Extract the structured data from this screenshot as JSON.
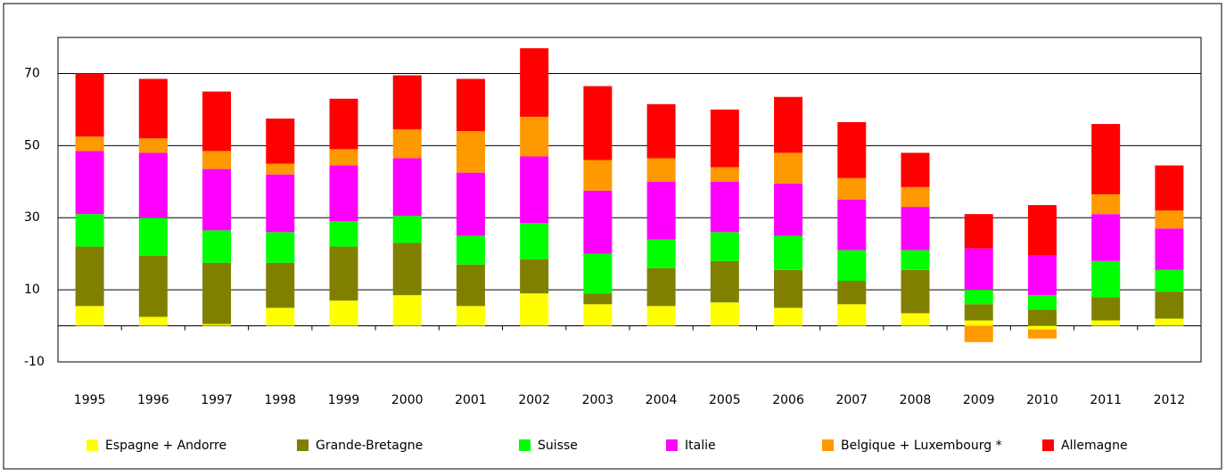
{
  "chart_data": {
    "type": "stacked_bar",
    "categories": [
      "1995",
      "1996",
      "1997",
      "1998",
      "1999",
      "2000",
      "2001",
      "2002",
      "2003",
      "2004",
      "2005",
      "2006",
      "2007",
      "2008",
      "2009",
      "2010",
      "2011",
      "2012"
    ],
    "series": [
      {
        "name": "Espagne + Andorre",
        "color": "#ffff00",
        "values": [
          5.5,
          2.5,
          0.5,
          5,
          7,
          8.5,
          5.5,
          9,
          6,
          5.5,
          6.5,
          5,
          6,
          3.5,
          1.5,
          -1,
          1.5,
          2
        ]
      },
      {
        "name": "Grande-Bretagne",
        "color": "#808000",
        "values": [
          16.5,
          17,
          17,
          12.5,
          15,
          14.5,
          11.5,
          9.5,
          3,
          10.5,
          11.5,
          10.5,
          6.5,
          12,
          4.5,
          4.5,
          6.5,
          7.5
        ]
      },
      {
        "name": "Suisse",
        "color": "#00ff00",
        "values": [
          9,
          10.5,
          9,
          8.5,
          7,
          7.5,
          8,
          10,
          11,
          8,
          8,
          9.5,
          8.5,
          5.5,
          4,
          4,
          10,
          6
        ]
      },
      {
        "name": "Italie",
        "color": "#ff00ff",
        "values": [
          17.5,
          18,
          17,
          16,
          15.5,
          16,
          17.5,
          18.5,
          17.5,
          16,
          14,
          14.5,
          14,
          12,
          11.5,
          11,
          13,
          11.5
        ]
      },
      {
        "name": "Belgique + Luxembourg *",
        "color": "#ff9900",
        "values": [
          4,
          4,
          5,
          3,
          4.5,
          8,
          11.5,
          11,
          8.5,
          6.5,
          4,
          8.5,
          6,
          5.5,
          -4.5,
          -2.5,
          5.5,
          5
        ]
      },
      {
        "name": "Allemagne",
        "color": "#ff0000",
        "values": [
          17.5,
          16.5,
          16.5,
          12.5,
          14,
          15,
          14.5,
          19,
          20.5,
          15,
          16,
          15.5,
          15.5,
          9.5,
          9.5,
          14,
          19.5,
          12.5
        ]
      }
    ],
    "ylim": [
      -10,
      80
    ],
    "yticks": [
      70,
      50,
      30,
      10,
      -10
    ],
    "grid": true
  }
}
